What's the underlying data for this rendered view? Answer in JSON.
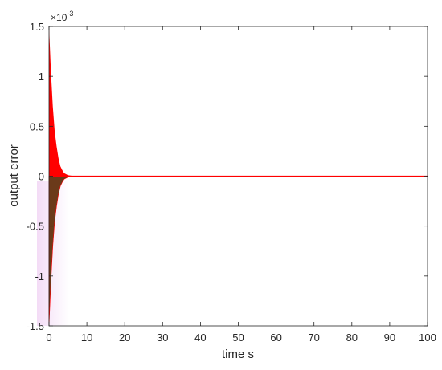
{
  "chart_data": {
    "type": "line",
    "xlabel": "time s",
    "ylabel": "output error",
    "xlim": [
      0,
      100
    ],
    "ylim": [
      -1.5,
      1.5
    ],
    "y_multiplier": {
      "base": "10",
      "exponent": "-3",
      "prefix": "×"
    },
    "xticks": [
      0,
      10,
      20,
      30,
      40,
      50,
      60,
      70,
      80,
      90,
      100
    ],
    "xtick_labels": [
      "0",
      "10",
      "20",
      "30",
      "40",
      "50",
      "60",
      "70",
      "80",
      "90",
      "100"
    ],
    "yticks": [
      -1.5,
      -1,
      -0.5,
      0,
      0.5,
      1,
      1.5
    ],
    "ytick_labels": [
      "-1.5",
      "-1",
      "-0.5",
      "0",
      "0.5",
      "1",
      "1.5"
    ],
    "grid": false,
    "series": [
      {
        "color": "#ff0000",
        "envelope": {
          "x": [
            0,
            0.5,
            1,
            1.5,
            2,
            2.5,
            3,
            3.5,
            4,
            5,
            6,
            100
          ],
          "upper": [
            1.5,
            1.05,
            0.7,
            0.45,
            0.3,
            0.18,
            0.1,
            0.06,
            0.03,
            0.01,
            0.004,
            0.004
          ],
          "lower": [
            -1.5,
            -1.05,
            -0.7,
            -0.45,
            -0.3,
            -0.18,
            -0.1,
            -0.06,
            -0.03,
            -0.01,
            -0.004,
            -0.004
          ]
        }
      }
    ],
    "lower_fill_color": "#6b3a1a",
    "highlight_color": "#f2d8f5"
  }
}
